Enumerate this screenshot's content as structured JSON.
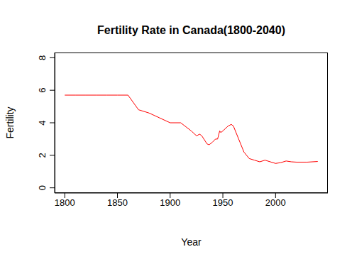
{
  "chart_data": {
    "type": "line",
    "title": "Fertility Rate in Canada(1800-2040)",
    "x_label": "Year",
    "y_label": "Fertility",
    "x": [
      1800,
      1810,
      1820,
      1830,
      1840,
      1850,
      1860,
      1870,
      1880,
      1890,
      1900,
      1910,
      1920,
      1925,
      1928,
      1930,
      1935,
      1937,
      1940,
      1943,
      1945,
      1947,
      1948,
      1950,
      1955,
      1958,
      1960,
      1965,
      1970,
      1975,
      1980,
      1985,
      1990,
      1995,
      2000,
      2005,
      2010,
      2015,
      2020,
      2030,
      2040
    ],
    "series": [
      {
        "name": "Fertility",
        "color": "#ff0000",
        "values": [
          5.7,
          5.7,
          5.7,
          5.7,
          5.7,
          5.7,
          5.7,
          4.8,
          4.6,
          4.3,
          4.0,
          4.0,
          3.5,
          3.2,
          3.3,
          3.2,
          2.7,
          2.65,
          2.8,
          3.0,
          3.0,
          3.5,
          3.4,
          3.5,
          3.8,
          3.9,
          3.8,
          3.0,
          2.2,
          1.8,
          1.7,
          1.6,
          1.7,
          1.6,
          1.5,
          1.55,
          1.65,
          1.6,
          1.58,
          1.58,
          1.62
        ]
      }
    ],
    "xlim": [
      1790.4,
      2049.6
    ],
    "xticks": [
      1800,
      1850,
      1900,
      1950,
      2000
    ],
    "ylim": [
      -0.32,
      8.32
    ],
    "yticks": [
      0,
      2,
      4,
      6,
      8
    ],
    "grid": false
  }
}
